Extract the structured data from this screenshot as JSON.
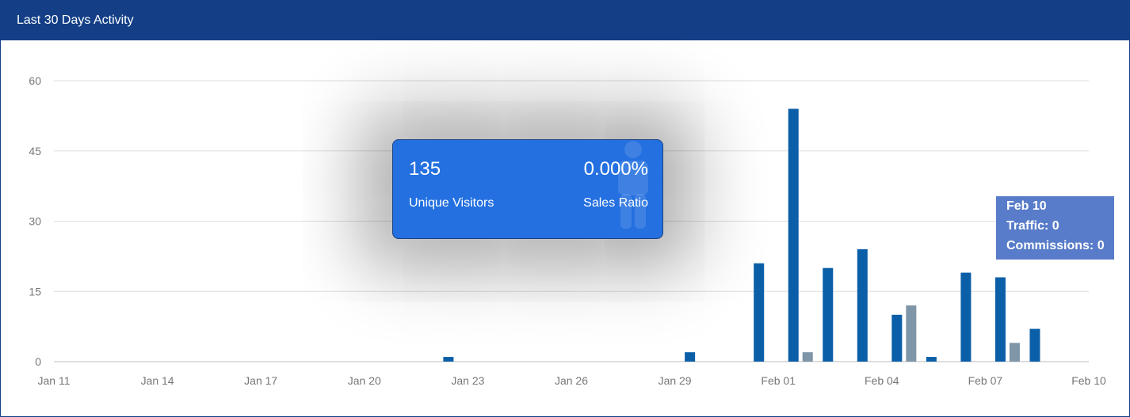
{
  "panel": {
    "title": "Last 30 Days Activity"
  },
  "stats": {
    "visitors_value": "135",
    "visitors_label": "Unique Visitors",
    "ratio_value": "0.000%",
    "ratio_label": "Sales Ratio",
    "background_icon": "person-icon",
    "card_color": "#2470e0"
  },
  "tooltip": {
    "date": "Feb 10",
    "traffic": "Traffic: 0",
    "commissions": "Commissions: 0"
  },
  "chart_data": {
    "type": "bar",
    "title": "",
    "xlabel": "",
    "ylabel": "",
    "ylim": [
      0,
      60
    ],
    "yticks": [
      0,
      15,
      30,
      45,
      60
    ],
    "grid": true,
    "x": [
      "Jan 11",
      "Jan 12",
      "Jan 13",
      "Jan 14",
      "Jan 15",
      "Jan 16",
      "Jan 17",
      "Jan 18",
      "Jan 19",
      "Jan 20",
      "Jan 21",
      "Jan 22",
      "Jan 23",
      "Jan 24",
      "Jan 25",
      "Jan 26",
      "Jan 27",
      "Jan 28",
      "Jan 29",
      "Jan 30",
      "Jan 31",
      "Feb 01",
      "Feb 02",
      "Feb 03",
      "Feb 04",
      "Feb 05",
      "Feb 06",
      "Feb 07",
      "Feb 08",
      "Feb 09",
      "Feb 10"
    ],
    "xtick_labels": [
      "Jan 11",
      "Jan 14",
      "Jan 17",
      "Jan 20",
      "Jan 23",
      "Jan 26",
      "Jan 29",
      "Feb 01",
      "Feb 04",
      "Feb 07",
      "Feb 10"
    ],
    "series": [
      {
        "color": "#0b5ea8",
        "values": [
          0,
          0,
          0,
          0,
          0,
          0,
          0,
          0,
          0,
          0,
          0,
          0,
          1,
          0,
          0,
          0,
          0,
          0,
          0,
          2,
          0,
          21,
          54,
          20,
          24,
          10,
          1,
          19,
          18,
          7,
          0
        ]
      },
      {
        "color": "#7f95a8",
        "values": [
          0,
          0,
          0,
          0,
          0,
          0,
          0,
          0,
          0,
          0,
          0,
          0,
          0,
          0,
          0,
          0,
          0,
          0,
          0,
          0,
          0,
          0,
          2,
          0,
          0,
          12,
          0,
          0,
          4,
          0,
          0
        ]
      }
    ]
  }
}
